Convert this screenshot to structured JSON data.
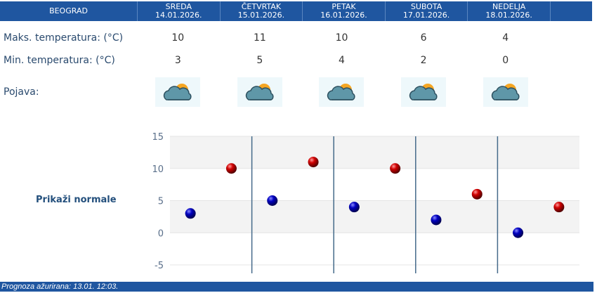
{
  "header": {
    "city": "BEOGRAD",
    "days": [
      {
        "name": "SREDA",
        "date": "14.01.2026."
      },
      {
        "name": "ČETVRTAK",
        "date": "15.01.2026."
      },
      {
        "name": "PETAK",
        "date": "16.01.2026."
      },
      {
        "name": "SUBOTA",
        "date": "17.01.2026."
      },
      {
        "name": "NEDELJA",
        "date": "18.01.2026."
      }
    ]
  },
  "rows": {
    "max_label": "Maks. temperatura: (°C)",
    "min_label": "Min. temperatura: (°C)",
    "phen_label": "Pojava:",
    "max": [
      "10",
      "11",
      "10",
      "6",
      "4"
    ],
    "min": [
      "3",
      "5",
      "4",
      "2",
      "0"
    ],
    "icons": [
      "partly-cloudy-icon",
      "partly-cloudy-icon",
      "partly-cloudy-icon",
      "partly-cloudy-icon",
      "partly-cloudy-icon"
    ]
  },
  "normals_link": "Prikaži normale",
  "chart_data": {
    "type": "scatter",
    "categories": [
      "SREDA",
      "ČETVRTAK",
      "PETAK",
      "SUBOTA",
      "NEDELJA"
    ],
    "ylim": [
      -5,
      15
    ],
    "yticks": [
      "15",
      "10",
      "5",
      "0",
      "-5"
    ],
    "grid": true,
    "series": [
      {
        "values": [
          3,
          5,
          4,
          2,
          0
        ],
        "color": "#0000c0"
      },
      {
        "values": [
          10,
          11,
          10,
          6,
          4
        ],
        "color": "#d00000"
      }
    ]
  },
  "footer": "Prognoza ažurirana:  13.01. 12:03."
}
